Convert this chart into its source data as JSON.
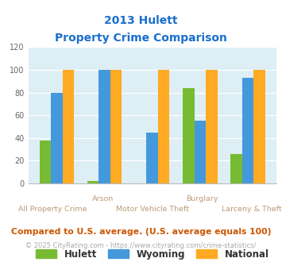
{
  "title_line1": "2013 Hulett",
  "title_line2": "Property Crime Comparison",
  "title_color": "#1a6fcc",
  "group_labels_row1": [
    "",
    "Arson",
    "",
    "Burglary",
    ""
  ],
  "group_labels_row2": [
    "All Property Crime",
    "",
    "Motor Vehicle Theft",
    "",
    "Larceny & Theft"
  ],
  "hulett": [
    38,
    2,
    0,
    84,
    26
  ],
  "wyoming": [
    80,
    100,
    45,
    55,
    93
  ],
  "national": [
    100,
    100,
    100,
    100,
    100
  ],
  "hulett_color": "#77bb33",
  "wyoming_color": "#4499dd",
  "national_color": "#ffaa22",
  "ylim": [
    0,
    120
  ],
  "yticks": [
    0,
    20,
    40,
    60,
    80,
    100,
    120
  ],
  "bg_color": "#ddeef5",
  "footnote": "Compared to U.S. average. (U.S. average equals 100)",
  "footnote2": "© 2025 CityRating.com - https://www.cityrating.com/crime-statistics/",
  "footnote_color": "#cc5500",
  "footnote2_color": "#aaaaaa",
  "xlabel_color": "#bb9977",
  "legend_label_color": "#333333"
}
